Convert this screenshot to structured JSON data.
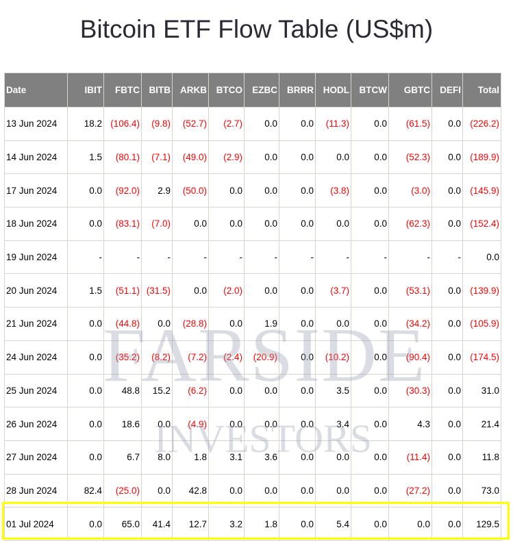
{
  "title": "Bitcoin ETF Flow Table (US$m)",
  "watermark": {
    "line1": "FARSIDE",
    "line2": "INVESTORS"
  },
  "colors": {
    "header_bg": "#808080",
    "negative": "#ff0000",
    "highlight": "#ffff00"
  },
  "columns": [
    "Date",
    "IBIT",
    "FBTC",
    "BITB",
    "ARKB",
    "BTCO",
    "EZBC",
    "BRRR",
    "HODL",
    "BTCW",
    "GBTC",
    "DEFI",
    "Total"
  ],
  "rows": [
    [
      "13 Jun 2024",
      "18.2",
      "(106.4)",
      "(9.8)",
      "(52.7)",
      "(2.7)",
      "0.0",
      "0.0",
      "(11.3)",
      "0.0",
      "(61.5)",
      "0.0",
      "(226.2)"
    ],
    [
      "14 Jun 2024",
      "1.5",
      "(80.1)",
      "(7.1)",
      "(49.0)",
      "(2.9)",
      "0.0",
      "0.0",
      "0.0",
      "0.0",
      "(52.3)",
      "0.0",
      "(189.9)"
    ],
    [
      "17 Jun 2024",
      "0.0",
      "(92.0)",
      "2.9",
      "(50.0)",
      "0.0",
      "0.0",
      "0.0",
      "(3.8)",
      "0.0",
      "(3.0)",
      "0.0",
      "(145.9)"
    ],
    [
      "18 Jun 2024",
      "0.0",
      "(83.1)",
      "(7.0)",
      "0.0",
      "0.0",
      "0.0",
      "0.0",
      "0.0",
      "0.0",
      "(62.3)",
      "0.0",
      "(152.4)"
    ],
    [
      "19 Jun 2024",
      "-",
      "-",
      "-",
      "-",
      "-",
      "-",
      "-",
      "-",
      "-",
      "-",
      "-",
      "0.0"
    ],
    [
      "20 Jun 2024",
      "1.5",
      "(51.1)",
      "(31.5)",
      "0.0",
      "(2.0)",
      "0.0",
      "0.0",
      "(3.7)",
      "0.0",
      "(53.1)",
      "0.0",
      "(139.9)"
    ],
    [
      "21 Jun 2024",
      "0.0",
      "(44.8)",
      "0.0",
      "(28.8)",
      "0.0",
      "1.9",
      "0.0",
      "0.0",
      "0.0",
      "(34.2)",
      "0.0",
      "(105.9)"
    ],
    [
      "24 Jun 2024",
      "0.0",
      "(35.2)",
      "(8.2)",
      "(7.2)",
      "(2.4)",
      "(20.9)",
      "0.0",
      "(10.2)",
      "0.0",
      "(90.4)",
      "0.0",
      "(174.5)"
    ],
    [
      "25 Jun 2024",
      "0.0",
      "48.8",
      "15.2",
      "(6.2)",
      "0.0",
      "0.0",
      "0.0",
      "3.5",
      "0.0",
      "(30.3)",
      "0.0",
      "31.0"
    ],
    [
      "26 Jun 2024",
      "0.0",
      "18.6",
      "0.0",
      "(4.9)",
      "0.0",
      "0.0",
      "0.0",
      "3.4",
      "0.0",
      "4.3",
      "0.0",
      "21.4"
    ],
    [
      "27 Jun 2024",
      "0.0",
      "6.7",
      "8.0",
      "1.8",
      "3.1",
      "3.6",
      "0.0",
      "0.0",
      "0.0",
      "(11.4)",
      "0.0",
      "11.8"
    ],
    [
      "28 Jun 2024",
      "82.4",
      "(25.0)",
      "0.0",
      "42.8",
      "0.0",
      "0.0",
      "0.0",
      "0.0",
      "0.0",
      "(27.2)",
      "0.0",
      "73.0"
    ],
    [
      "01 Jul 2024",
      "0.0",
      "65.0",
      "41.4",
      "12.7",
      "3.2",
      "1.8",
      "0.0",
      "5.4",
      "0.0",
      "0.0",
      "0.0",
      "129.5"
    ]
  ]
}
